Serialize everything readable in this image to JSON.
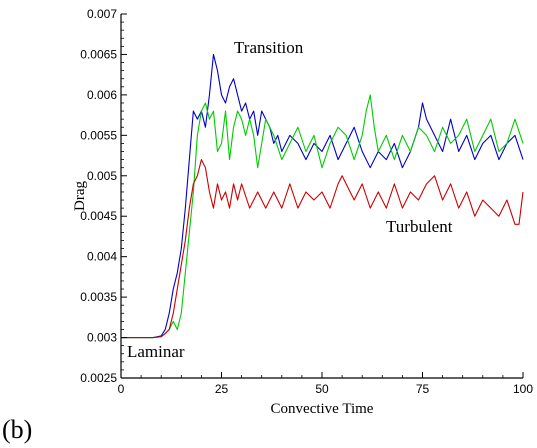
{
  "panel_label": "(b)",
  "chart_data": {
    "type": "line",
    "title": "",
    "xlabel": "Convective Time",
    "ylabel": "Drag",
    "xlim": [
      0,
      100
    ],
    "ylim": [
      0.0025,
      0.007
    ],
    "xticks": [
      0,
      25,
      50,
      75,
      100
    ],
    "yticks": [
      0.0025,
      0.003,
      0.0035,
      0.004,
      0.0045,
      0.005,
      0.0055,
      0.006,
      0.0065,
      0.007
    ],
    "xtick_labels": [
      "0",
      "25",
      "50",
      "75",
      "100"
    ],
    "ytick_labels": [
      "0.0025",
      "0.003",
      "0.0035",
      "0.004",
      "0.0045",
      "0.005",
      "0.0055",
      "0.006",
      "0.0065",
      "0.007"
    ],
    "grid": false,
    "annotations": [
      {
        "text": "Transition",
        "x": 32,
        "y": 0.00675
      },
      {
        "text": "Turbulent",
        "x": 83,
        "y": 0.00427
      },
      {
        "text": "Laminar",
        "x": 3,
        "y": 0.00288
      }
    ],
    "series": [
      {
        "color": "#0000cc",
        "x": [
          0,
          8,
          10,
          11,
          12,
          13,
          14,
          15,
          16,
          17,
          18,
          19,
          20,
          21,
          22,
          23,
          24,
          25,
          26,
          27,
          28,
          29,
          30,
          31,
          32,
          33,
          34,
          35,
          36,
          37,
          38,
          39,
          40,
          42,
          44,
          46,
          48,
          50,
          52,
          54,
          56,
          58,
          60,
          62,
          64,
          66,
          68,
          70,
          72,
          74,
          75,
          76,
          78,
          80,
          82,
          84,
          86,
          88,
          90,
          92,
          94,
          96,
          98,
          100
        ],
        "y": [
          0.003,
          0.003,
          0.00302,
          0.0031,
          0.0033,
          0.0036,
          0.0038,
          0.0041,
          0.0046,
          0.0052,
          0.0058,
          0.0057,
          0.0058,
          0.0056,
          0.006,
          0.0065,
          0.0063,
          0.006,
          0.0059,
          0.0061,
          0.0062,
          0.006,
          0.0058,
          0.0059,
          0.0057,
          0.0058,
          0.0055,
          0.0058,
          0.0057,
          0.0056,
          0.0054,
          0.0055,
          0.0053,
          0.0055,
          0.0054,
          0.0052,
          0.0054,
          0.0053,
          0.0055,
          0.0052,
          0.0054,
          0.0056,
          0.0053,
          0.0051,
          0.0053,
          0.0052,
          0.0054,
          0.0051,
          0.0053,
          0.0056,
          0.0059,
          0.0057,
          0.0055,
          0.0053,
          0.0057,
          0.0053,
          0.0055,
          0.0052,
          0.0054,
          0.0055,
          0.0052,
          0.0054,
          0.0055,
          0.0052
        ]
      },
      {
        "color": "#00cc00",
        "x": [
          0,
          8,
          10,
          11,
          12,
          13,
          14,
          15,
          16,
          17,
          18,
          19,
          20,
          21,
          22,
          23,
          24,
          25,
          26,
          27,
          28,
          29,
          30,
          31,
          32,
          33,
          34,
          35,
          36,
          38,
          40,
          42,
          44,
          46,
          48,
          50,
          52,
          54,
          56,
          58,
          60,
          61,
          62,
          63,
          64,
          66,
          68,
          70,
          72,
          74,
          76,
          78,
          80,
          82,
          84,
          86,
          88,
          90,
          92,
          94,
          96,
          98,
          100
        ],
        "y": [
          0.003,
          0.003,
          0.00301,
          0.00305,
          0.0031,
          0.0032,
          0.0031,
          0.0033,
          0.0038,
          0.0043,
          0.0048,
          0.0055,
          0.0058,
          0.0059,
          0.0057,
          0.0058,
          0.0053,
          0.0054,
          0.0058,
          0.0052,
          0.0056,
          0.0058,
          0.0057,
          0.0055,
          0.0057,
          0.0055,
          0.0051,
          0.0054,
          0.0057,
          0.0055,
          0.0052,
          0.0054,
          0.0056,
          0.0053,
          0.0055,
          0.0051,
          0.0054,
          0.0056,
          0.0055,
          0.0052,
          0.0055,
          0.0058,
          0.006,
          0.0056,
          0.0053,
          0.0055,
          0.0052,
          0.0055,
          0.0053,
          0.0056,
          0.0055,
          0.0053,
          0.0056,
          0.0054,
          0.0055,
          0.0057,
          0.0053,
          0.0055,
          0.0057,
          0.0053,
          0.0054,
          0.0057,
          0.0054
        ]
      },
      {
        "color": "#cc0000",
        "x": [
          0,
          8,
          10,
          11,
          12,
          13,
          14,
          15,
          16,
          17,
          18,
          19,
          20,
          21,
          22,
          23,
          24,
          25,
          26,
          27,
          28,
          29,
          30,
          32,
          34,
          36,
          38,
          40,
          42,
          44,
          46,
          48,
          50,
          52,
          54,
          55,
          56,
          58,
          60,
          62,
          64,
          66,
          68,
          70,
          72,
          74,
          76,
          78,
          80,
          82,
          84,
          86,
          88,
          90,
          92,
          94,
          96,
          98,
          99,
          100
        ],
        "y": [
          0.003,
          0.003,
          0.00301,
          0.00305,
          0.0031,
          0.0033,
          0.0036,
          0.0039,
          0.0042,
          0.0046,
          0.0049,
          0.005,
          0.0052,
          0.0051,
          0.0048,
          0.0046,
          0.0049,
          0.0047,
          0.0048,
          0.0046,
          0.0049,
          0.0047,
          0.0049,
          0.0046,
          0.0048,
          0.0046,
          0.0048,
          0.0046,
          0.0049,
          0.0046,
          0.0048,
          0.0047,
          0.0048,
          0.0046,
          0.0049,
          0.005,
          0.0049,
          0.0047,
          0.0049,
          0.0046,
          0.0048,
          0.0046,
          0.0049,
          0.0046,
          0.0048,
          0.0047,
          0.0049,
          0.005,
          0.0047,
          0.0049,
          0.0046,
          0.0048,
          0.0045,
          0.0047,
          0.0046,
          0.0045,
          0.0047,
          0.0044,
          0.0044,
          0.0048
        ]
      }
    ]
  }
}
